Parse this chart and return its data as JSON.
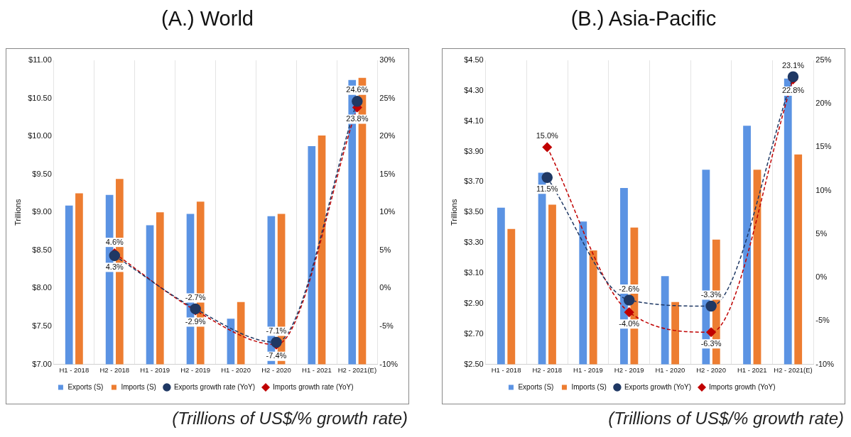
{
  "chart_data": [
    {
      "type": "bar",
      "title": "(A.) World",
      "ylabel": "Trillions",
      "annotations": [
        "(Trillions of US$/% growth rate)"
      ],
      "categories": [
        "H1 - 2018",
        "H2 - 2018",
        "H1 - 2019",
        "H2 - 2019",
        "H1 - 2020",
        "H2 - 2020",
        "H1 - 2021",
        "H2 - 2021(E)"
      ],
      "series": [
        {
          "name": "Exports (S)",
          "color": "#5b93e3",
          "values": [
            9.09,
            9.23,
            8.83,
            8.98,
            7.6,
            8.95,
            9.87,
            10.74
          ]
        },
        {
          "name": "Imports (S)",
          "color": "#ed7d31",
          "values": [
            9.25,
            9.44,
            9.0,
            9.14,
            7.82,
            8.98,
            10.01,
            10.77
          ]
        },
        {
          "name": "Exports growth rate (YoY)",
          "type": "line",
          "axis": "y2",
          "marker": "circle",
          "line_style": "dashed",
          "color": "#1f3864",
          "values": [
            null,
            4.3,
            null,
            -2.7,
            null,
            -7.1,
            null,
            24.6
          ],
          "value_labels": [
            null,
            "4.3%",
            null,
            "-2.7%",
            null,
            "-7.1%",
            null,
            "24.6%"
          ]
        },
        {
          "name": "Imports growth rate (YoY)",
          "type": "line",
          "axis": "y2",
          "marker": "diamond",
          "line_style": "dashed",
          "color": "#c00000",
          "values": [
            null,
            4.6,
            null,
            -2.9,
            null,
            -7.4,
            null,
            23.8
          ],
          "value_labels": [
            null,
            "4.6%",
            null,
            "-2.9%",
            null,
            "-7.4%",
            null,
            "23.8%"
          ]
        }
      ],
      "ylim": [
        7,
        11
      ],
      "yticks": [
        {
          "value": 7,
          "label": "$7.00"
        },
        {
          "value": 7.5,
          "label": "$7.50"
        },
        {
          "value": 8,
          "label": "$8.00"
        },
        {
          "value": 8.5,
          "label": "$8.50"
        },
        {
          "value": 9,
          "label": "$9.00"
        },
        {
          "value": 9.5,
          "label": "$9.50"
        },
        {
          "value": 10,
          "label": "$10.00"
        },
        {
          "value": 10.5,
          "label": "$10.50"
        },
        {
          "value": 11,
          "label": "$11.00"
        }
      ],
      "y2lim": [
        -10,
        30
      ],
      "y2ticks": [
        {
          "value": -10,
          "label": "-10%"
        },
        {
          "value": -5,
          "label": "-5%"
        },
        {
          "value": 0,
          "label": "0%"
        },
        {
          "value": 5,
          "label": "5%"
        },
        {
          "value": 10,
          "label": "10%"
        },
        {
          "value": 15,
          "label": "15%"
        },
        {
          "value": 20,
          "label": "20%"
        },
        {
          "value": 25,
          "label": "25%"
        },
        {
          "value": 30,
          "label": "30%"
        }
      ],
      "grid": "x",
      "legend": "bottom"
    },
    {
      "type": "bar",
      "title": "(B.) Asia-Pacific",
      "ylabel": "Trillions",
      "annotations": [
        "(Trillions of US$/% growth rate)"
      ],
      "categories": [
        "H1 - 2018",
        "H2 - 2018",
        "H1 - 2019",
        "H2 - 2019",
        "H1 - 2020",
        "H2 - 2020",
        "H1 - 2021",
        "H2 - 2021(E)"
      ],
      "series": [
        {
          "name": "Exports (S)",
          "color": "#5b93e3",
          "values": [
            3.53,
            3.76,
            3.44,
            3.66,
            3.08,
            3.78,
            4.07,
            4.38
          ]
        },
        {
          "name": "Imports (S)",
          "color": "#ed7d31",
          "values": [
            3.39,
            3.55,
            3.25,
            3.4,
            2.91,
            3.32,
            3.78,
            3.88
          ]
        },
        {
          "name": "Exports growth (YoY)",
          "type": "line",
          "axis": "y2",
          "marker": "circle",
          "line_style": "dashed",
          "color": "#1f3864",
          "values": [
            null,
            11.5,
            null,
            -2.6,
            null,
            -3.3,
            null,
            23.1
          ],
          "value_labels": [
            null,
            "11.5%",
            null,
            "-2.6%",
            null,
            "-3.3%",
            null,
            "23.1%"
          ]
        },
        {
          "name": "Imports growth (YoY)",
          "type": "line",
          "axis": "y2",
          "marker": "diamond",
          "line_style": "dashed",
          "color": "#c00000",
          "values": [
            null,
            15.0,
            null,
            -4.0,
            null,
            -6.3,
            null,
            22.8
          ],
          "value_labels": [
            null,
            "15.0%",
            null,
            "-4.0%",
            null,
            "-6.3%",
            null,
            "22.8%"
          ]
        }
      ],
      "ylim": [
        2.5,
        4.5
      ],
      "yticks": [
        {
          "value": 2.5,
          "label": "$2.50"
        },
        {
          "value": 2.7,
          "label": "$2.70"
        },
        {
          "value": 2.9,
          "label": "$2.90"
        },
        {
          "value": 3.1,
          "label": "$3.10"
        },
        {
          "value": 3.3,
          "label": "$3.30"
        },
        {
          "value": 3.5,
          "label": "$3.50"
        },
        {
          "value": 3.7,
          "label": "$3.70"
        },
        {
          "value": 3.9,
          "label": "$3.90"
        },
        {
          "value": 4.1,
          "label": "$4.10"
        },
        {
          "value": 4.3,
          "label": "$4.30"
        },
        {
          "value": 4.5,
          "label": "$4.50"
        }
      ],
      "y2lim": [
        -10,
        25
      ],
      "y2ticks": [
        {
          "value": -10,
          "label": "-10%"
        },
        {
          "value": -5,
          "label": "-5%"
        },
        {
          "value": 0,
          "label": "0%"
        },
        {
          "value": 5,
          "label": "5%"
        },
        {
          "value": 10,
          "label": "10%"
        },
        {
          "value": 15,
          "label": "15%"
        },
        {
          "value": 20,
          "label": "20%"
        },
        {
          "value": 25,
          "label": "25%"
        }
      ],
      "grid": "x",
      "legend": "bottom"
    }
  ]
}
